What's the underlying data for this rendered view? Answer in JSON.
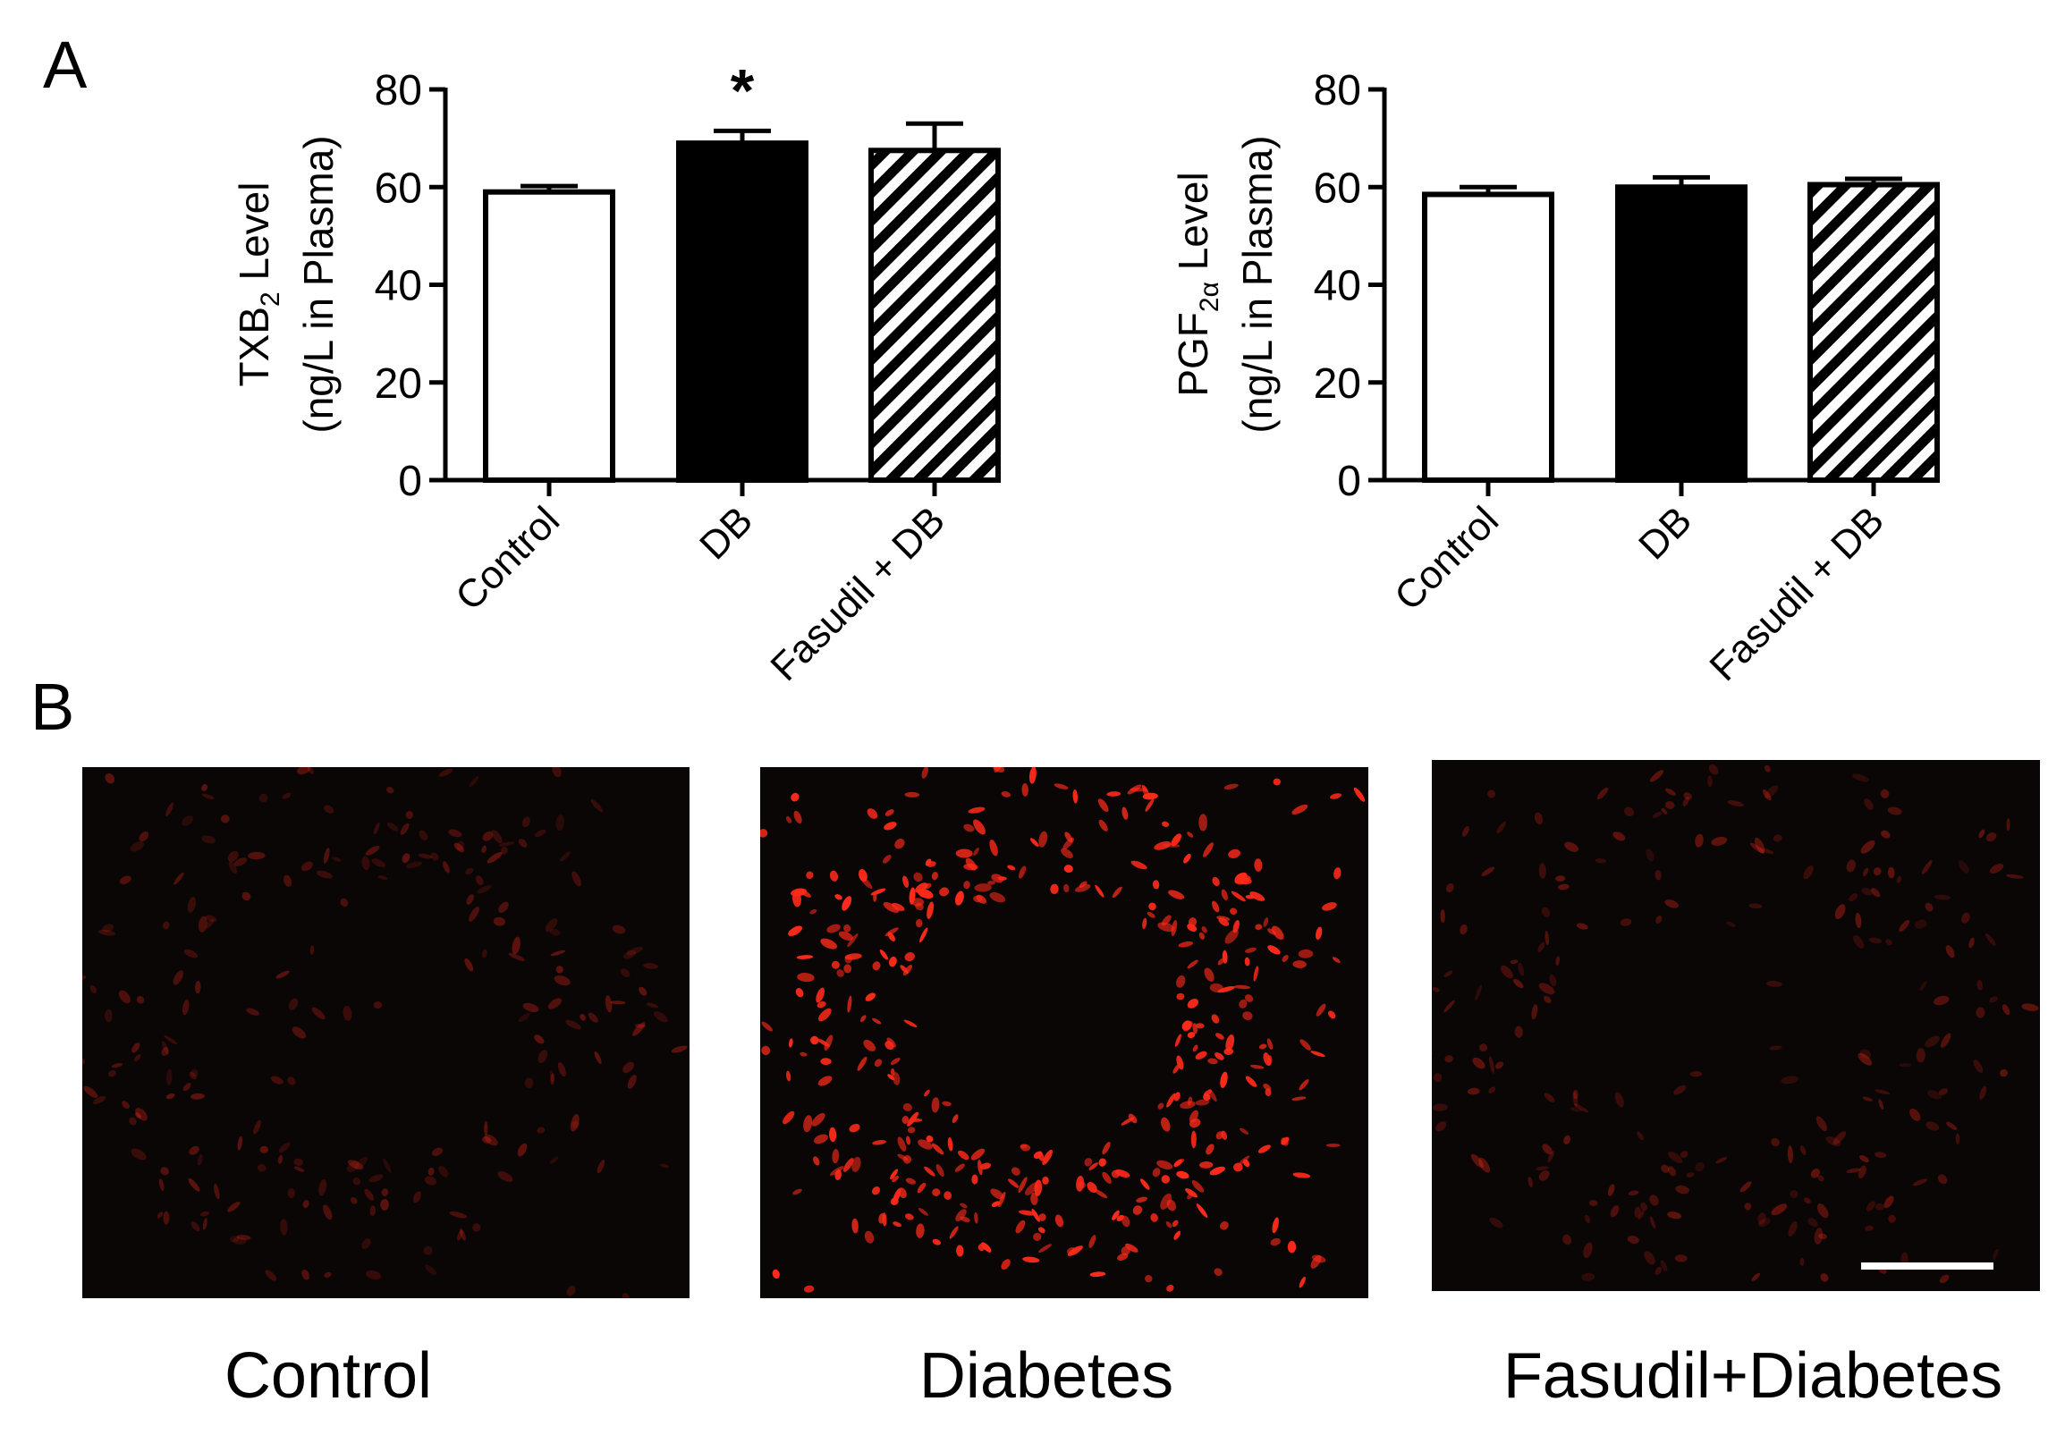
{
  "panels": {
    "a": "A",
    "b": "B"
  },
  "chart_data": [
    {
      "type": "bar",
      "categories": [
        "Control",
        "DB",
        "Fasudil + DB"
      ],
      "values": [
        59,
        69,
        67.5
      ],
      "errors": [
        1.2,
        2.5,
        5.5
      ],
      "fills": [
        "white",
        "black",
        "hatched"
      ],
      "ylabel_line1_pre": "TXB",
      "ylabel_line1_sub": "2",
      "ylabel_line1_post": " Level",
      "ylabel_line2": "(ng/L in Plasma)",
      "yticks": [
        "0",
        "20",
        "40",
        "60",
        "80"
      ],
      "ylim": [
        0,
        80
      ],
      "annotation": "*",
      "annotation_category": "DB",
      "grid": false
    },
    {
      "type": "bar",
      "categories": [
        "Control",
        "DB",
        "Fasudil + DB"
      ],
      "values": [
        58.5,
        60,
        60.5
      ],
      "errors": [
        1.5,
        2,
        1.2
      ],
      "fills": [
        "white",
        "black",
        "hatched"
      ],
      "ylabel_line1_pre": "PGF",
      "ylabel_line1_sub": "2α",
      "ylabel_line1_post": " Level",
      "ylabel_line2": "(ng/L in Plasma)",
      "yticks": [
        "0",
        "20",
        "40",
        "60",
        "80"
      ],
      "ylim": [
        0,
        80
      ],
      "grid": false
    }
  ],
  "micrographs": [
    {
      "caption": "Control",
      "intensity": "low"
    },
    {
      "caption": "Diabetes",
      "intensity": "high"
    },
    {
      "caption": "Fasudil+Diabetes",
      "intensity": "low",
      "scale_bar": true
    }
  ],
  "colors": {
    "signal": "#ff2a1a",
    "background": "#0b0606",
    "bar_dark": "#000000",
    "bar_light": "#ffffff"
  }
}
